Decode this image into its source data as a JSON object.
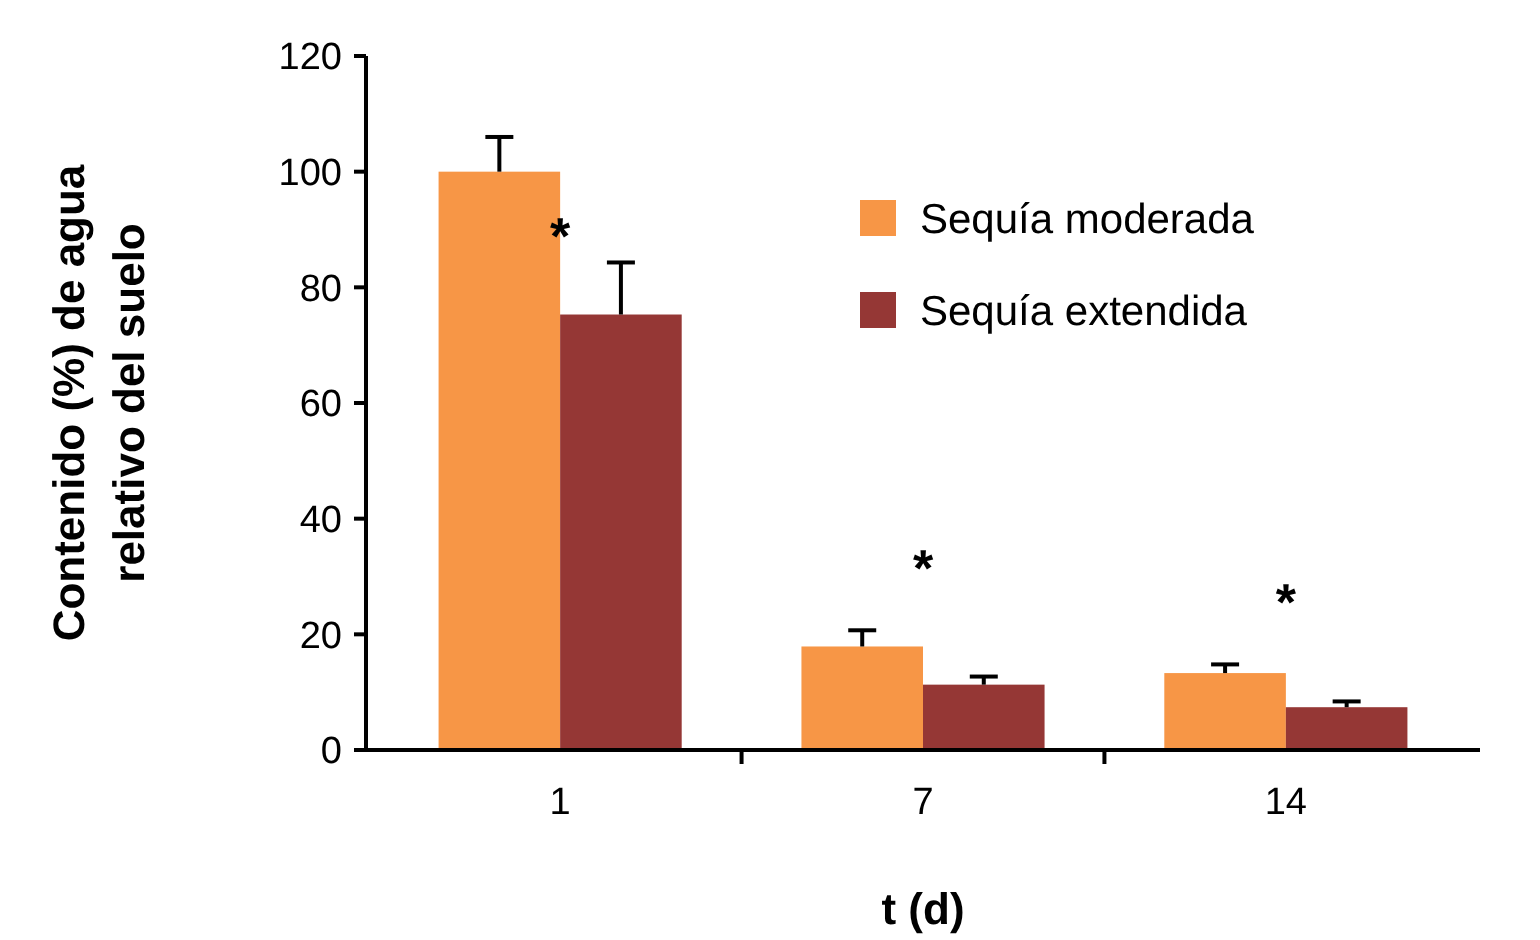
{
  "chart_data": {
    "type": "bar",
    "xlabel": "t (d)",
    "ylabel": "Contenido (%) de agua relativo del suelo",
    "categories": [
      "1",
      "7",
      "14"
    ],
    "series": [
      {
        "name": "Sequía moderada",
        "color": "#f79646",
        "values": [
          100,
          17.9,
          13.3
        ],
        "errors": [
          6,
          2.8,
          1.5
        ]
      },
      {
        "name": "Sequía extendida",
        "color": "#953735",
        "values": [
          75.3,
          11.3,
          7.4
        ],
        "errors": [
          9,
          1.4,
          1
        ]
      }
    ],
    "ylim": [
      0,
      120
    ],
    "yticks": [
      0,
      20,
      40,
      60,
      80,
      100,
      120
    ],
    "legend": "top right",
    "annotations": [
      "*",
      "*",
      "*"
    ]
  }
}
